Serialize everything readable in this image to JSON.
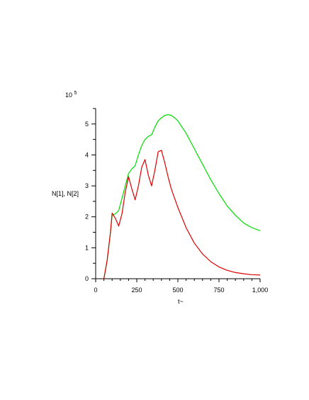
{
  "chart_data": {
    "type": "line",
    "title": "",
    "xlabel": "t~",
    "ylabel": "N[1], N[2]",
    "y_multiplier_label": "10",
    "y_multiplier_exponent": "5",
    "xlim": [
      0,
      1000
    ],
    "ylim": [
      0,
      5.5
    ],
    "x_ticks": [
      0,
      250,
      500,
      750,
      1000
    ],
    "x_tick_labels": [
      "0",
      "250",
      "500",
      "750",
      "1,000"
    ],
    "y_ticks": [
      0,
      1,
      2,
      3,
      4,
      5
    ],
    "y_tick_labels": [
      "0",
      "1",
      "2",
      "3",
      "4",
      "5"
    ],
    "grid": false,
    "series": [
      {
        "color": "#00dd00",
        "x": [
          50,
          70,
          90,
          100,
          120,
          140,
          160,
          180,
          200,
          220,
          240,
          260,
          280,
          300,
          320,
          340,
          360,
          380,
          400,
          420,
          440,
          460,
          480,
          500,
          550,
          600,
          650,
          700,
          750,
          800,
          850,
          900,
          950,
          1000
        ],
        "y": [
          0,
          0.6,
          1.5,
          2.05,
          2.1,
          2.2,
          2.6,
          3.0,
          3.4,
          3.55,
          3.65,
          4.0,
          4.3,
          4.5,
          4.6,
          4.65,
          4.9,
          5.1,
          5.2,
          5.28,
          5.3,
          5.28,
          5.2,
          5.1,
          4.7,
          4.2,
          3.7,
          3.2,
          2.75,
          2.35,
          2.05,
          1.8,
          1.65,
          1.55
        ]
      },
      {
        "color": "#dd0000",
        "x": [
          50,
          70,
          90,
          100,
          120,
          140,
          160,
          180,
          200,
          220,
          240,
          260,
          280,
          300,
          320,
          340,
          360,
          380,
          400,
          420,
          440,
          460,
          480,
          500,
          550,
          600,
          650,
          700,
          750,
          800,
          850,
          900,
          950,
          1000
        ],
        "y": [
          0,
          0.6,
          1.5,
          2.12,
          1.95,
          1.7,
          2.1,
          2.8,
          3.3,
          2.9,
          2.55,
          3.0,
          3.6,
          3.85,
          3.35,
          3.0,
          3.5,
          4.1,
          4.15,
          3.75,
          3.3,
          2.9,
          2.6,
          2.3,
          1.65,
          1.15,
          0.8,
          0.55,
          0.38,
          0.27,
          0.2,
          0.16,
          0.13,
          0.12
        ]
      }
    ]
  }
}
